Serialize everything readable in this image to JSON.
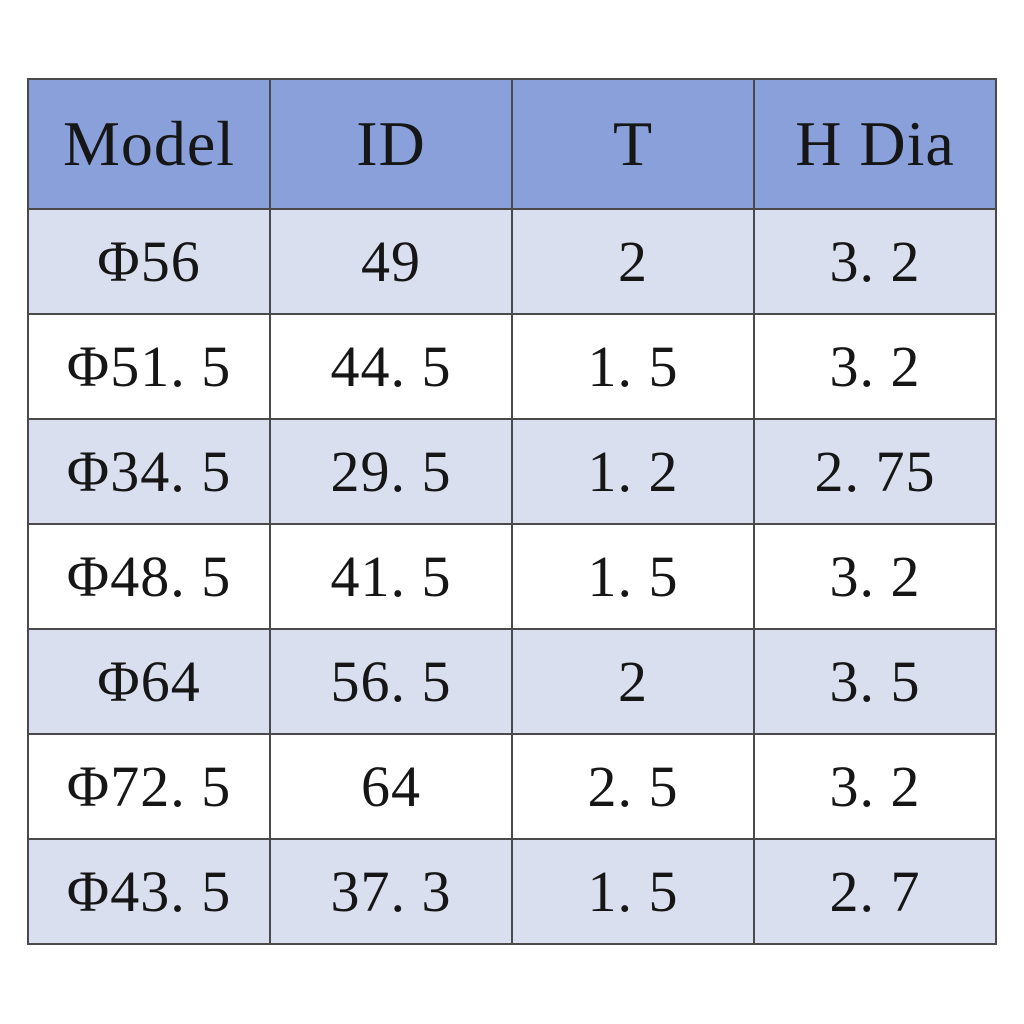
{
  "table": {
    "headers": [
      "Model",
      "ID",
      "T",
      "H Dia"
    ],
    "rows": [
      [
        "Φ56",
        "49",
        "2",
        "3. 2"
      ],
      [
        "Φ51. 5",
        "44. 5",
        "1. 5",
        "3. 2"
      ],
      [
        "Φ34. 5",
        "29. 5",
        "1. 2",
        "2. 75"
      ],
      [
        "Φ48. 5",
        "41. 5",
        "1. 5",
        "3. 2"
      ],
      [
        "Φ64",
        "56. 5",
        "2",
        "3. 5"
      ],
      [
        "Φ72. 5",
        "64",
        "2. 5",
        "3. 2"
      ],
      [
        "Φ43. 5",
        "37. 3",
        "1. 5",
        "2. 7"
      ]
    ],
    "colors": {
      "header_bg": "#8aa0da",
      "row_alt_bg": "#dadff0",
      "row_bg": "#ffffff",
      "border": "#4a4a4a",
      "text": "#161616",
      "page_bg": "#ffffff"
    }
  },
  "chart_data": {
    "type": "table",
    "title": "",
    "columns": [
      "Model",
      "ID",
      "T",
      "H Dia"
    ],
    "rows": [
      [
        "Φ56",
        49,
        2,
        3.2
      ],
      [
        "Φ51.5",
        44.5,
        1.5,
        3.2
      ],
      [
        "Φ34.5",
        29.5,
        1.2,
        2.75
      ],
      [
        "Φ48.5",
        41.5,
        1.5,
        3.2
      ],
      [
        "Φ64",
        56.5,
        2,
        3.5
      ],
      [
        "Φ72.5",
        64,
        2.5,
        3.2
      ],
      [
        "Φ43.5",
        37.3,
        1.5,
        2.7
      ]
    ],
    "layout_hints": {
      "header_fill": "#8aa0da",
      "banding": "odd rows lavender #dadff0, even rows white",
      "grid": "all borders, dark gray",
      "text_align": "center"
    }
  }
}
